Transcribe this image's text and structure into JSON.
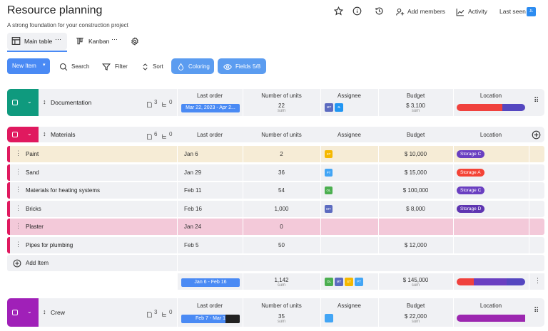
{
  "header": {
    "title": "Resource planning",
    "subtitle": "A strong foundation for your construction project",
    "add_members": "Add members",
    "activity": "Activity",
    "last_seen": "Last seen",
    "avatar": "JL"
  },
  "tabs": [
    "Main table",
    "Kanban"
  ],
  "toolbar": {
    "new_item": "New Item",
    "search": "Search",
    "filter": "Filter",
    "sort": "Sort",
    "coloring": "Coloring",
    "fields": "Fields",
    "fields_count": "5/8"
  },
  "columns": [
    "Last order",
    "Number of units",
    "Assignee",
    "Budget",
    "Location"
  ],
  "groups": [
    {
      "name": "Documentation",
      "docs": "3",
      "subitems": "0",
      "summary": {
        "last_order": "Mar 22, 2023 - Apr 2...",
        "units": "22",
        "units_label": "sum",
        "assignees": [
          "MT",
          "JL"
        ],
        "budget": "$ 3,100",
        "budget_label": "sum"
      }
    },
    {
      "name": "Materials",
      "docs": "6",
      "subitems": "0",
      "items": [
        {
          "name": "Paint",
          "last_order": "Jan 6",
          "units": "2",
          "assignee": "ST",
          "budget": "$ 10,000",
          "location": "Storage C"
        },
        {
          "name": "Sand",
          "last_order": "Jan 29",
          "units": "36",
          "assignee": "PT",
          "budget": "$ 15,000",
          "location": "Storage A"
        },
        {
          "name": "Materials for heating systems",
          "last_order": "Feb 11",
          "units": "54",
          "assignee": "OL",
          "budget": "$ 100,000",
          "location": "Storage C"
        },
        {
          "name": "Bricks",
          "last_order": "Feb 16",
          "units": "1,000",
          "assignee": "MT",
          "budget": "$ 8,000",
          "location": "Storage D"
        },
        {
          "name": "Plaster",
          "last_order": "Jan 24",
          "units": "0"
        },
        {
          "name": "Pipes for plumbing",
          "last_order": "Feb 5",
          "units": "50",
          "budget": "$ 12,000"
        }
      ],
      "add_item": "Add Item",
      "summary": {
        "last_order": "Jan 6 - Feb 16",
        "units": "1,142",
        "units_label": "sum",
        "assignees": [
          "OL",
          "MT",
          "ST",
          "PT"
        ],
        "budget": "$ 145,000",
        "budget_label": "sum"
      }
    },
    {
      "name": "Crew",
      "docs": "3",
      "subitems": "0",
      "summary": {
        "last_order": "Feb 7 - Mar 1",
        "units": "35",
        "units_label": "sum",
        "budget": "$ 22,000",
        "budget_label": "sum"
      }
    }
  ]
}
